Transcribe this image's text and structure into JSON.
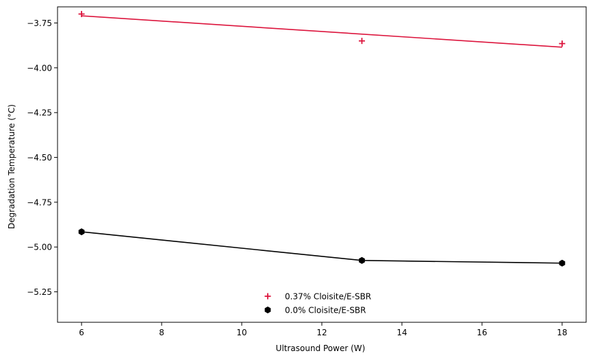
{
  "colors": {
    "series_a": "#dc143c",
    "series_b": "#000000",
    "axes": "#000000",
    "background": "#ffffff"
  },
  "chart_data": {
    "type": "scatter",
    "title": "",
    "xlabel": "Ultrasound Power (W)",
    "ylabel": "Degradation Temperature (°C)",
    "xlim": [
      5.4,
      18.6
    ],
    "ylim": [
      -5.42,
      -3.66
    ],
    "xticks": [
      6,
      8,
      10,
      12,
      14,
      16,
      18
    ],
    "xtick_labels": [
      "6",
      "8",
      "10",
      "12",
      "14",
      "16",
      "18"
    ],
    "yticks": [
      -3.75,
      -4.0,
      -4.25,
      -4.5,
      -4.75,
      -5.0,
      -5.25
    ],
    "ytick_labels": [
      "−3.75",
      "−4.00",
      "−4.25",
      "−4.50",
      "−4.75",
      "−5.00",
      "−5.25"
    ],
    "grid": false,
    "legend_position": "bottom-center",
    "series": [
      {
        "name": "0.37% Cloisite/E-SBR",
        "marker": "plus",
        "color": "#dc143c",
        "x": [
          6,
          13,
          18
        ],
        "y": [
          -3.7,
          -3.85,
          -3.865
        ],
        "fit_line": {
          "x": [
            6,
            18
          ],
          "y": [
            -3.71,
            -3.885
          ]
        }
      },
      {
        "name": "0.0% Cloisite/E-SBR",
        "marker": "hexagon",
        "color": "#000000",
        "x": [
          6,
          13,
          18
        ],
        "y": [
          -4.915,
          -5.075,
          -5.09
        ],
        "fit_line": {
          "x": [
            6,
            13,
            18
          ],
          "y": [
            -4.915,
            -5.075,
            -5.09
          ]
        }
      }
    ]
  }
}
